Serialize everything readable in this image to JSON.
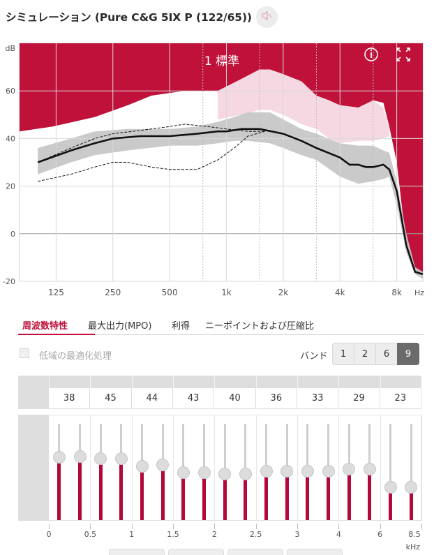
{
  "window": {
    "title": "シミュレーション (Pure C&G 5IX P (122/65))",
    "speaker_icon": "speaker-muted-icon"
  },
  "chart_data": {
    "type": "line",
    "title": "1 標準",
    "xlabel": "Hz",
    "ylabel": "dB",
    "x_scale": "log",
    "x_ticks": [
      {
        "label": "125",
        "hz": 125
      },
      {
        "label": "250",
        "hz": 250
      },
      {
        "label": "500",
        "hz": 500
      },
      {
        "label": "1k",
        "hz": 1000
      },
      {
        "label": "2k",
        "hz": 2000
      },
      {
        "label": "4k",
        "hz": 4000
      },
      {
        "label": "8k",
        "hz": 8000
      }
    ],
    "dotted_x_lines_hz": [
      750,
      1500,
      3000,
      6000
    ],
    "y_ticks": [
      60,
      40,
      20,
      0,
      -20
    ],
    "ylim": [
      -20,
      80
    ],
    "xlim": [
      80,
      11000
    ],
    "grid": true,
    "upper_region": {
      "color": "#c0113b",
      "boundary": [
        [
          80,
          43
        ],
        [
          120,
          45
        ],
        [
          200,
          49
        ],
        [
          300,
          54
        ],
        [
          400,
          58
        ],
        [
          600,
          60
        ],
        [
          900,
          60
        ],
        [
          1200,
          65
        ],
        [
          1500,
          69
        ],
        [
          1700,
          69
        ],
        [
          2000,
          67
        ],
        [
          2500,
          64
        ],
        [
          3000,
          58
        ],
        [
          3500,
          56
        ],
        [
          4000,
          54
        ],
        [
          5000,
          53
        ],
        [
          6000,
          56
        ],
        [
          6800,
          55
        ],
        [
          7300,
          45
        ],
        [
          8000,
          30
        ],
        [
          9000,
          -5
        ],
        [
          10000,
          -16
        ],
        [
          11000,
          -17
        ]
      ]
    },
    "shaded_band": {
      "color": "#c7c7c7",
      "upper": [
        [
          100,
          36
        ],
        [
          150,
          40
        ],
        [
          200,
          43
        ],
        [
          300,
          44
        ],
        [
          500,
          44
        ],
        [
          700,
          45
        ],
        [
          900,
          47
        ],
        [
          1100,
          49
        ],
        [
          1300,
          51
        ],
        [
          1700,
          51
        ],
        [
          2000,
          48
        ],
        [
          2500,
          44
        ],
        [
          3000,
          42
        ],
        [
          4000,
          38
        ],
        [
          5000,
          37
        ],
        [
          6000,
          37
        ],
        [
          6800,
          35
        ],
        [
          7300,
          34
        ],
        [
          8000,
          22
        ],
        [
          9000,
          0
        ],
        [
          10000,
          -14
        ],
        [
          11000,
          -16
        ]
      ],
      "lower": [
        [
          100,
          25
        ],
        [
          150,
          30
        ],
        [
          200,
          33
        ],
        [
          300,
          35
        ],
        [
          500,
          37
        ],
        [
          700,
          37
        ],
        [
          900,
          38
        ],
        [
          1100,
          39
        ],
        [
          1300,
          39
        ],
        [
          1700,
          38
        ],
        [
          2000,
          36
        ],
        [
          2500,
          33
        ],
        [
          3000,
          31
        ],
        [
          4000,
          24
        ],
        [
          5000,
          21
        ],
        [
          6000,
          22
        ],
        [
          6800,
          23
        ],
        [
          7300,
          24
        ],
        [
          8000,
          12
        ],
        [
          9000,
          -8
        ],
        [
          10000,
          -17
        ],
        [
          11000,
          -19
        ]
      ]
    },
    "pink_band": {
      "color": "#f5d8e2",
      "upper": [
        [
          900,
          60
        ],
        [
          1200,
          65
        ],
        [
          1500,
          69
        ],
        [
          1700,
          69
        ],
        [
          2000,
          67
        ],
        [
          2500,
          64
        ],
        [
          3000,
          58
        ],
        [
          3500,
          56
        ],
        [
          4000,
          54
        ],
        [
          5000,
          53
        ],
        [
          6000,
          56
        ],
        [
          6800,
          53
        ],
        [
          7300,
          44
        ]
      ],
      "lower": [
        [
          900,
          48
        ],
        [
          1200,
          50
        ],
        [
          1500,
          52
        ],
        [
          1700,
          52
        ],
        [
          2000,
          50
        ],
        [
          2500,
          46
        ],
        [
          3000,
          44
        ],
        [
          3500,
          40
        ],
        [
          4000,
          38
        ],
        [
          5000,
          39
        ],
        [
          6000,
          39
        ],
        [
          6800,
          40
        ],
        [
          7300,
          41
        ]
      ]
    },
    "series": [
      {
        "style": "solid",
        "values": [
          [
            100,
            30
          ],
          [
            150,
            35
          ],
          [
            200,
            38
          ],
          [
            250,
            40
          ],
          [
            350,
            41
          ],
          [
            500,
            41
          ],
          [
            700,
            42
          ],
          [
            900,
            43
          ],
          [
            1000,
            43
          ],
          [
            1200,
            44
          ],
          [
            1500,
            44
          ],
          [
            2000,
            42
          ],
          [
            2500,
            39
          ],
          [
            3000,
            36
          ],
          [
            4000,
            32
          ],
          [
            4500,
            29
          ],
          [
            5000,
            29
          ],
          [
            5500,
            28
          ],
          [
            6000,
            28
          ],
          [
            6800,
            29
          ],
          [
            7300,
            27
          ],
          [
            8000,
            18
          ],
          [
            9000,
            -5
          ],
          [
            10000,
            -16
          ],
          [
            11000,
            -17
          ]
        ]
      },
      {
        "style": "dashed",
        "values": [
          [
            100,
            30
          ],
          [
            150,
            36
          ],
          [
            200,
            40
          ],
          [
            250,
            42
          ],
          [
            400,
            44
          ],
          [
            500,
            45
          ],
          [
            600,
            46
          ],
          [
            800,
            45
          ],
          [
            1000,
            44
          ],
          [
            1300,
            43
          ],
          [
            1600,
            43
          ]
        ]
      },
      {
        "style": "dashed",
        "values": [
          [
            100,
            22
          ],
          [
            150,
            25
          ],
          [
            200,
            28
          ],
          [
            250,
            30
          ],
          [
            300,
            30
          ],
          [
            400,
            28
          ],
          [
            500,
            27
          ],
          [
            700,
            27
          ],
          [
            900,
            31
          ],
          [
            1100,
            36
          ],
          [
            1300,
            41
          ],
          [
            1600,
            43
          ]
        ]
      }
    ]
  },
  "tabs": [
    {
      "label": "周波数特性",
      "active": true
    },
    {
      "label": "最大出力(MPO)",
      "active": false
    },
    {
      "label": "利得",
      "active": false
    },
    {
      "label": "ニーポイントおよび圧縮比",
      "active": false
    }
  ],
  "options": {
    "low_freq_label": "低域の最適化処理",
    "low_freq_checked": false,
    "band_label": "バンド",
    "band_options": [
      "1",
      "2",
      "6",
      "9"
    ],
    "band_selected": "9"
  },
  "band_values": [
    "38",
    "45",
    "44",
    "43",
    "40",
    "36",
    "33",
    "29",
    "23"
  ],
  "slider_levels": [
    0.65,
    0.66,
    0.64,
    0.64,
    0.56,
    0.57,
    0.49,
    0.49,
    0.48,
    0.48,
    0.51,
    0.51,
    0.51,
    0.51,
    0.53,
    0.53,
    0.34,
    0.34
  ],
  "khz_scale": {
    "labels": [
      "0",
      "0.5",
      "1",
      "1.5",
      "2",
      "2.5",
      "3",
      "4",
      "6",
      "8.5"
    ],
    "unit": "kHz"
  },
  "colors": {
    "accent": "#c0113b",
    "slider_fill": "#b3093a",
    "band_grey": "#c7c7c7",
    "pink": "#f5d8e2"
  }
}
